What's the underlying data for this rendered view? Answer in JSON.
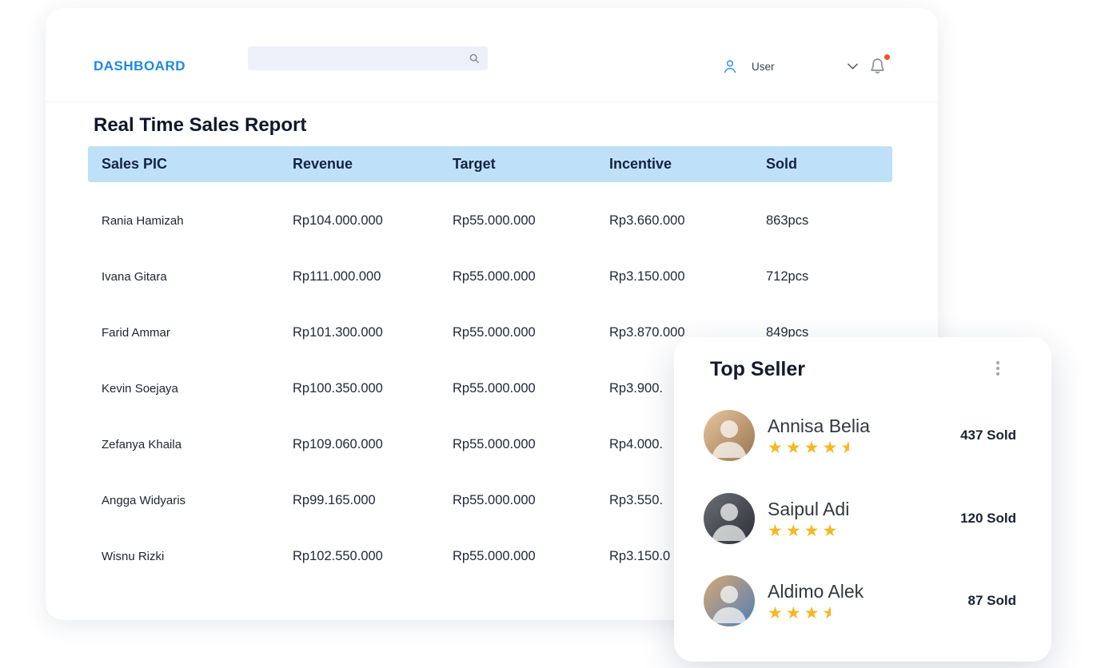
{
  "colors": {
    "accent": "#1E88E5",
    "table_header_bg": "#BEE1F8",
    "star": "#F5B724",
    "notification_dot": "#F4511E",
    "text_dark": "#1B2233"
  },
  "header": {
    "brand": "DASHBOARD",
    "search": {
      "value": "",
      "placeholder": "",
      "icon": "search-icon"
    },
    "user": {
      "label": "User",
      "icons": [
        "user-icon",
        "chevron-down-icon",
        "bell-icon"
      ]
    }
  },
  "report": {
    "title": "Real Time Sales Report",
    "columns": [
      "Sales PIC",
      "Revenue",
      "Target",
      "Incentive",
      "Sold"
    ],
    "rows": [
      {
        "name": "Rania Hamizah",
        "revenue": "Rp104.000.000",
        "target": "Rp55.000.000",
        "incentive": "Rp3.660.000",
        "sold": "863pcs"
      },
      {
        "name": "Ivana Gitara",
        "revenue": "Rp111.000.000",
        "target": "Rp55.000.000",
        "incentive": "Rp3.150.000",
        "sold": "712pcs"
      },
      {
        "name": "Farid Ammar",
        "revenue": "Rp101.300.000",
        "target": "Rp55.000.000",
        "incentive": "Rp3.870.000",
        "sold": "849pcs"
      },
      {
        "name": "Kevin Soejaya",
        "revenue": "Rp100.350.000",
        "target": "Rp55.000.000",
        "incentive": "Rp3.900.",
        "sold": ""
      },
      {
        "name": "Zefanya Khaila",
        "revenue": "Rp109.060.000",
        "target": "Rp55.000.000",
        "incentive": "Rp4.000.",
        "sold": ""
      },
      {
        "name": "Angga Widyaris",
        "revenue": "Rp99.165.000",
        "target": "Rp55.000.000",
        "incentive": "Rp3.550.",
        "sold": ""
      },
      {
        "name": "Wisnu Rizki",
        "revenue": "Rp102.550.000",
        "target": "Rp55.000.000",
        "incentive": "Rp3.150.0",
        "sold": ""
      }
    ]
  },
  "top_seller": {
    "title": "Top Seller",
    "menu_icon": "kebab-menu-icon",
    "items": [
      {
        "name": "Annisa Belia",
        "rating": 4.5,
        "sold": "437 Sold"
      },
      {
        "name": "Saipul Adi",
        "rating": 4,
        "sold": "120 Sold"
      },
      {
        "name": "Aldimo Alek",
        "rating": 3.5,
        "sold": "87 Sold"
      }
    ]
  }
}
